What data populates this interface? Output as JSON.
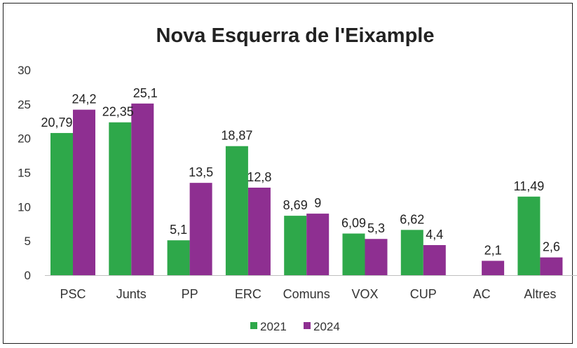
{
  "chart_data": {
    "type": "bar",
    "title": "Nova Esquerra de l'Eixample",
    "categories": [
      "PSC",
      "Junts",
      "PP",
      "ERC",
      "Comuns",
      "VOX",
      "CUP",
      "AC",
      "Altres"
    ],
    "series": [
      {
        "name": "2021",
        "color": "#2ea84a",
        "values": [
          20.79,
          22.35,
          5.1,
          18.87,
          8.69,
          6.09,
          6.62,
          null,
          11.49
        ],
        "labels": [
          "20,79",
          "22,35",
          "5,1",
          "18,87",
          "8,69",
          "6,09",
          "6,62",
          "",
          "11,49"
        ]
      },
      {
        "name": "2024",
        "color": "#8e2f91",
        "values": [
          24.2,
          25.1,
          13.5,
          12.8,
          9,
          5.3,
          4.4,
          2.1,
          2.6
        ],
        "labels": [
          "24,2",
          "25,1",
          "13,5",
          "12,8",
          "9",
          "5,3",
          "4,4",
          "2,1",
          "2,6"
        ]
      }
    ],
    "ylim": [
      0,
      30
    ],
    "yticks": [
      "0",
      "5",
      "10",
      "15",
      "20",
      "25",
      "30"
    ],
    "grid": false,
    "legend": "bottom"
  }
}
